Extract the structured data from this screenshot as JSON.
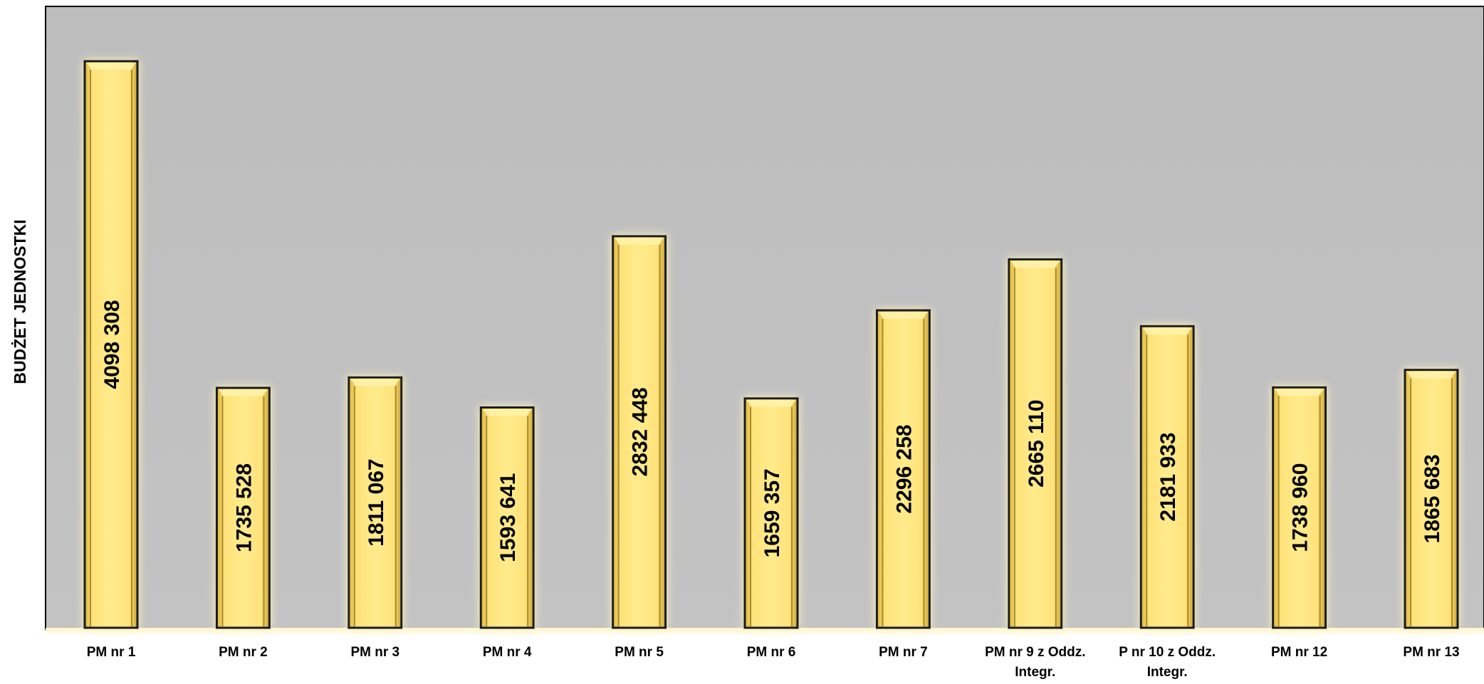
{
  "chart_data": {
    "type": "bar",
    "title": "",
    "xlabel": "",
    "ylabel": "BUDŻET JEDNOSTKI",
    "categories": [
      "PM nr 1",
      "PM nr 2",
      "PM nr 3",
      "PM nr 4",
      "PM nr 5",
      "PM nr 6",
      "PM nr 7",
      "PM nr 9 z Oddz. Integr.",
      "P nr 10 z Oddz. Integr.",
      "PM nr 12",
      "PM nr 13"
    ],
    "values": [
      4098308,
      1735528,
      1811067,
      1593641,
      2832448,
      1659357,
      2296258,
      2665110,
      2181933,
      1738960,
      1865683
    ],
    "data_labels": [
      "4098 308",
      "1735 528",
      "1811 067",
      "1593 641",
      "2832 448",
      "1659 357",
      "2296 258",
      "2665 110",
      "2181 933",
      "1738 960",
      "1865 683"
    ],
    "ylim": [
      0,
      4500000
    ],
    "grid": false,
    "legend": "none",
    "colors": {
      "bar_fill": "#FFE57A",
      "bar_edge": "#1a1a1a",
      "plot_background": "#C0C0C0",
      "floor": "#FFF0C4"
    }
  }
}
